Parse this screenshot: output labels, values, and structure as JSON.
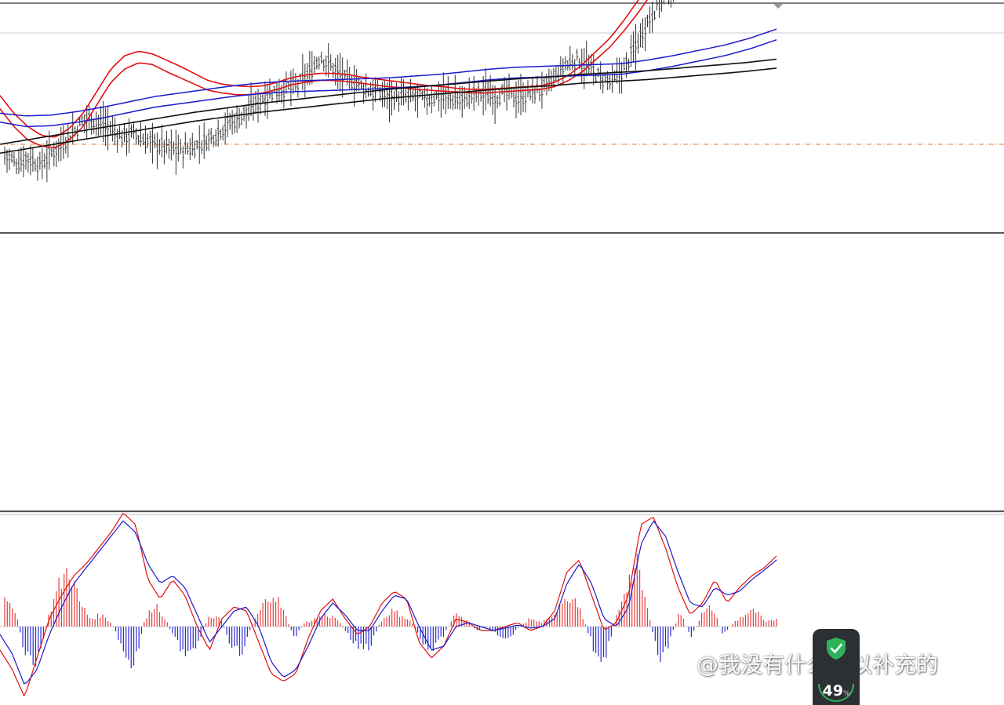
{
  "watermark": {
    "text": "@我没有什么可以补充的"
  },
  "badge": {
    "percent": "49",
    "unit": "%",
    "icon": "shield-check-icon",
    "color": "#2fb35a"
  },
  "colors": {
    "price": "#333333",
    "ma_red": "#e01010",
    "ma_blue": "#1a1acc",
    "ma_black": "#111111",
    "level_line": "#222222",
    "dash_line": "#e07a30",
    "hist_pos": "#e83a3a",
    "hist_neg": "#2a2ad0",
    "macd_red": "#e01010",
    "macd_blue": "#1a1acc"
  },
  "chart_data": [
    {
      "type": "line",
      "panel": "price",
      "title": "",
      "grid": false,
      "xlabel": "",
      "ylabel": "",
      "note_levels": {
        "horizontal_solid_level": 0.0,
        "horizontal_dashed_level": 1.0
      },
      "series": [
        {
          "name": "",
          "role": "price",
          "values": [
            0.88,
            0.79,
            0.85,
            0.76,
            0.9,
            1.02,
            1.15,
            1.3,
            1.25,
            1.18,
            1.08,
            1.12,
            1.04,
            1.0,
            0.96,
            0.93,
            0.96,
            1.02,
            1.12,
            1.22,
            1.3,
            1.39,
            1.52,
            1.6,
            1.63,
            1.66,
            1.8,
            1.99,
            1.88,
            1.75,
            1.7,
            1.62,
            1.58,
            1.55,
            1.52,
            1.54,
            1.5,
            1.55,
            1.52,
            1.5,
            1.56,
            1.58,
            1.54,
            1.58,
            1.52,
            1.58,
            1.62,
            1.74,
            1.9,
            1.96,
            1.86,
            1.74,
            1.7,
            1.86,
            2.12,
            2.4,
            2.6,
            2.72,
            2.88,
            3.05,
            3.3,
            3.55,
            3.8,
            4.1,
            4.42,
            4.7,
            5.0
          ]
        },
        {
          "name": "",
          "role": "ma_red_upper",
          "values": [
            1.55,
            1.35,
            1.2,
            1.1,
            1.08,
            1.18,
            1.35,
            1.6,
            1.85,
            2.0,
            2.05,
            2.02,
            1.95,
            1.88,
            1.8,
            1.72,
            1.68,
            1.66,
            1.65,
            1.66,
            1.7,
            1.75,
            1.78,
            1.8,
            1.8,
            1.79,
            1.76,
            1.74,
            1.72,
            1.7,
            1.68,
            1.66,
            1.65,
            1.63,
            1.62,
            1.62,
            1.63,
            1.64,
            1.65,
            1.66,
            1.7,
            1.78,
            1.9,
            2.05,
            2.2,
            2.4,
            2.62,
            2.86,
            3.05,
            3.22,
            3.4,
            3.55,
            3.72,
            3.9,
            4.05,
            4.2,
            4.35
          ]
        },
        {
          "name": "",
          "role": "ma_red_lower",
          "values": [
            1.4,
            1.2,
            1.05,
            0.98,
            0.96,
            1.05,
            1.2,
            1.45,
            1.7,
            1.85,
            1.92,
            1.9,
            1.82,
            1.75,
            1.68,
            1.61,
            1.58,
            1.56,
            1.56,
            1.58,
            1.62,
            1.67,
            1.7,
            1.72,
            1.72,
            1.71,
            1.69,
            1.67,
            1.65,
            1.64,
            1.62,
            1.61,
            1.6,
            1.59,
            1.58,
            1.58,
            1.59,
            1.6,
            1.61,
            1.62,
            1.65,
            1.72,
            1.82,
            1.96,
            2.1,
            2.28,
            2.48,
            2.7,
            2.88,
            3.05,
            3.22,
            3.38,
            3.54,
            3.7,
            3.85,
            4.0,
            4.15
          ]
        },
        {
          "name": "",
          "role": "ma_blue_upper",
          "values": [
            1.35,
            1.32,
            1.33,
            1.37,
            1.42,
            1.48,
            1.54,
            1.58,
            1.62,
            1.66,
            1.69,
            1.71,
            1.72,
            1.73,
            1.74,
            1.75,
            1.77,
            1.79,
            1.82,
            1.85,
            1.87,
            1.88,
            1.89,
            1.9,
            1.91,
            1.95,
            2.0,
            2.06,
            2.12,
            2.2,
            2.3
          ]
        },
        {
          "name": "",
          "role": "ma_blue_lower",
          "values": [
            1.25,
            1.2,
            1.21,
            1.25,
            1.3,
            1.36,
            1.42,
            1.46,
            1.5,
            1.54,
            1.57,
            1.59,
            1.6,
            1.61,
            1.62,
            1.63,
            1.65,
            1.67,
            1.7,
            1.73,
            1.75,
            1.76,
            1.77,
            1.78,
            1.79,
            1.83,
            1.88,
            1.94,
            2.0,
            2.08,
            2.18
          ]
        },
        {
          "name": "",
          "role": "ma_black_upper",
          "values": [
            1.0,
            1.06,
            1.12,
            1.18,
            1.24,
            1.3,
            1.36,
            1.41,
            1.46,
            1.5,
            1.54,
            1.58,
            1.62,
            1.65,
            1.68,
            1.71,
            1.74,
            1.76,
            1.79,
            1.81,
            1.83,
            1.86,
            1.89,
            1.92,
            1.96
          ]
        },
        {
          "name": "",
          "role": "ma_black_lower",
          "values": [
            0.9,
            0.96,
            1.02,
            1.08,
            1.14,
            1.2,
            1.26,
            1.31,
            1.36,
            1.4,
            1.44,
            1.48,
            1.52,
            1.55,
            1.58,
            1.61,
            1.64,
            1.66,
            1.69,
            1.71,
            1.73,
            1.76,
            1.79,
            1.82,
            1.86
          ]
        }
      ]
    },
    {
      "type": "bar",
      "panel": "oscillator",
      "title": "",
      "grid": false,
      "histogram": [
        0.45,
        0.2,
        -0.4,
        -0.5,
        0.1,
        0.5,
        0.75,
        0.3,
        0.1,
        0.15,
        0.05,
        -0.3,
        -0.6,
        0.05,
        0.3,
        0.1,
        -0.2,
        -0.35,
        -0.2,
        0.1,
        0.15,
        -0.2,
        -0.35,
        0.0,
        0.25,
        0.45,
        0.2,
        -0.15,
        0.05,
        0.1,
        0.15,
        0.1,
        -0.1,
        -0.25,
        -0.3,
        0.05,
        0.2,
        0.15,
        0.05,
        -0.2,
        -0.3,
        -0.1,
        0.15,
        0.1,
        -0.05,
        0.0,
        -0.1,
        -0.15,
        0.0,
        0.1,
        0.05,
        0.1,
        0.35,
        0.4,
        0.1,
        -0.3,
        -0.4,
        0.1,
        0.55,
        0.75,
        0.2,
        -0.45,
        -0.2,
        0.2,
        -0.15,
        0.15,
        0.25,
        -0.1,
        0.05,
        0.15,
        0.2,
        0.05,
        0.1
      ],
      "series": [
        {
          "name": "",
          "role": "macd_red",
          "values": [
            -0.3,
            -0.55,
            -0.9,
            -0.4,
            0.1,
            0.4,
            0.65,
            0.8,
            1.0,
            1.2,
            1.45,
            1.3,
            0.6,
            0.35,
            0.6,
            0.4,
            0.0,
            -0.3,
            0.1,
            0.25,
            0.2,
            -0.2,
            -0.6,
            -0.7,
            -0.6,
            -0.15,
            0.2,
            0.35,
            0.1,
            -0.1,
            0.0,
            0.3,
            0.45,
            0.35,
            -0.2,
            -0.4,
            -0.25,
            0.1,
            0.05,
            -0.05,
            -0.05,
            0.0,
            0.05,
            -0.05,
            0.0,
            0.2,
            0.7,
            0.85,
            0.4,
            -0.05,
            0.05,
            0.4,
            1.3,
            1.4,
            1.0,
            0.5,
            0.15,
            0.3,
            0.6,
            0.3,
            0.5,
            0.65,
            0.75,
            0.9
          ]
        },
        {
          "name": "",
          "role": "macd_blue",
          "values": [
            -0.1,
            -0.35,
            -0.75,
            -0.55,
            -0.1,
            0.25,
            0.55,
            0.75,
            0.95,
            1.15,
            1.35,
            1.2,
            0.8,
            0.55,
            0.65,
            0.5,
            0.15,
            -0.2,
            0.0,
            0.2,
            0.25,
            0.0,
            -0.45,
            -0.65,
            -0.55,
            -0.25,
            0.1,
            0.3,
            0.15,
            -0.05,
            -0.05,
            0.2,
            0.4,
            0.35,
            0.0,
            -0.3,
            -0.25,
            0.0,
            0.05,
            0.0,
            -0.05,
            -0.02,
            0.02,
            -0.02,
            0.0,
            0.1,
            0.55,
            0.8,
            0.55,
            0.1,
            0.0,
            0.25,
            1.05,
            1.35,
            1.15,
            0.7,
            0.3,
            0.25,
            0.5,
            0.4,
            0.45,
            0.6,
            0.72,
            0.85
          ]
        }
      ]
    }
  ]
}
